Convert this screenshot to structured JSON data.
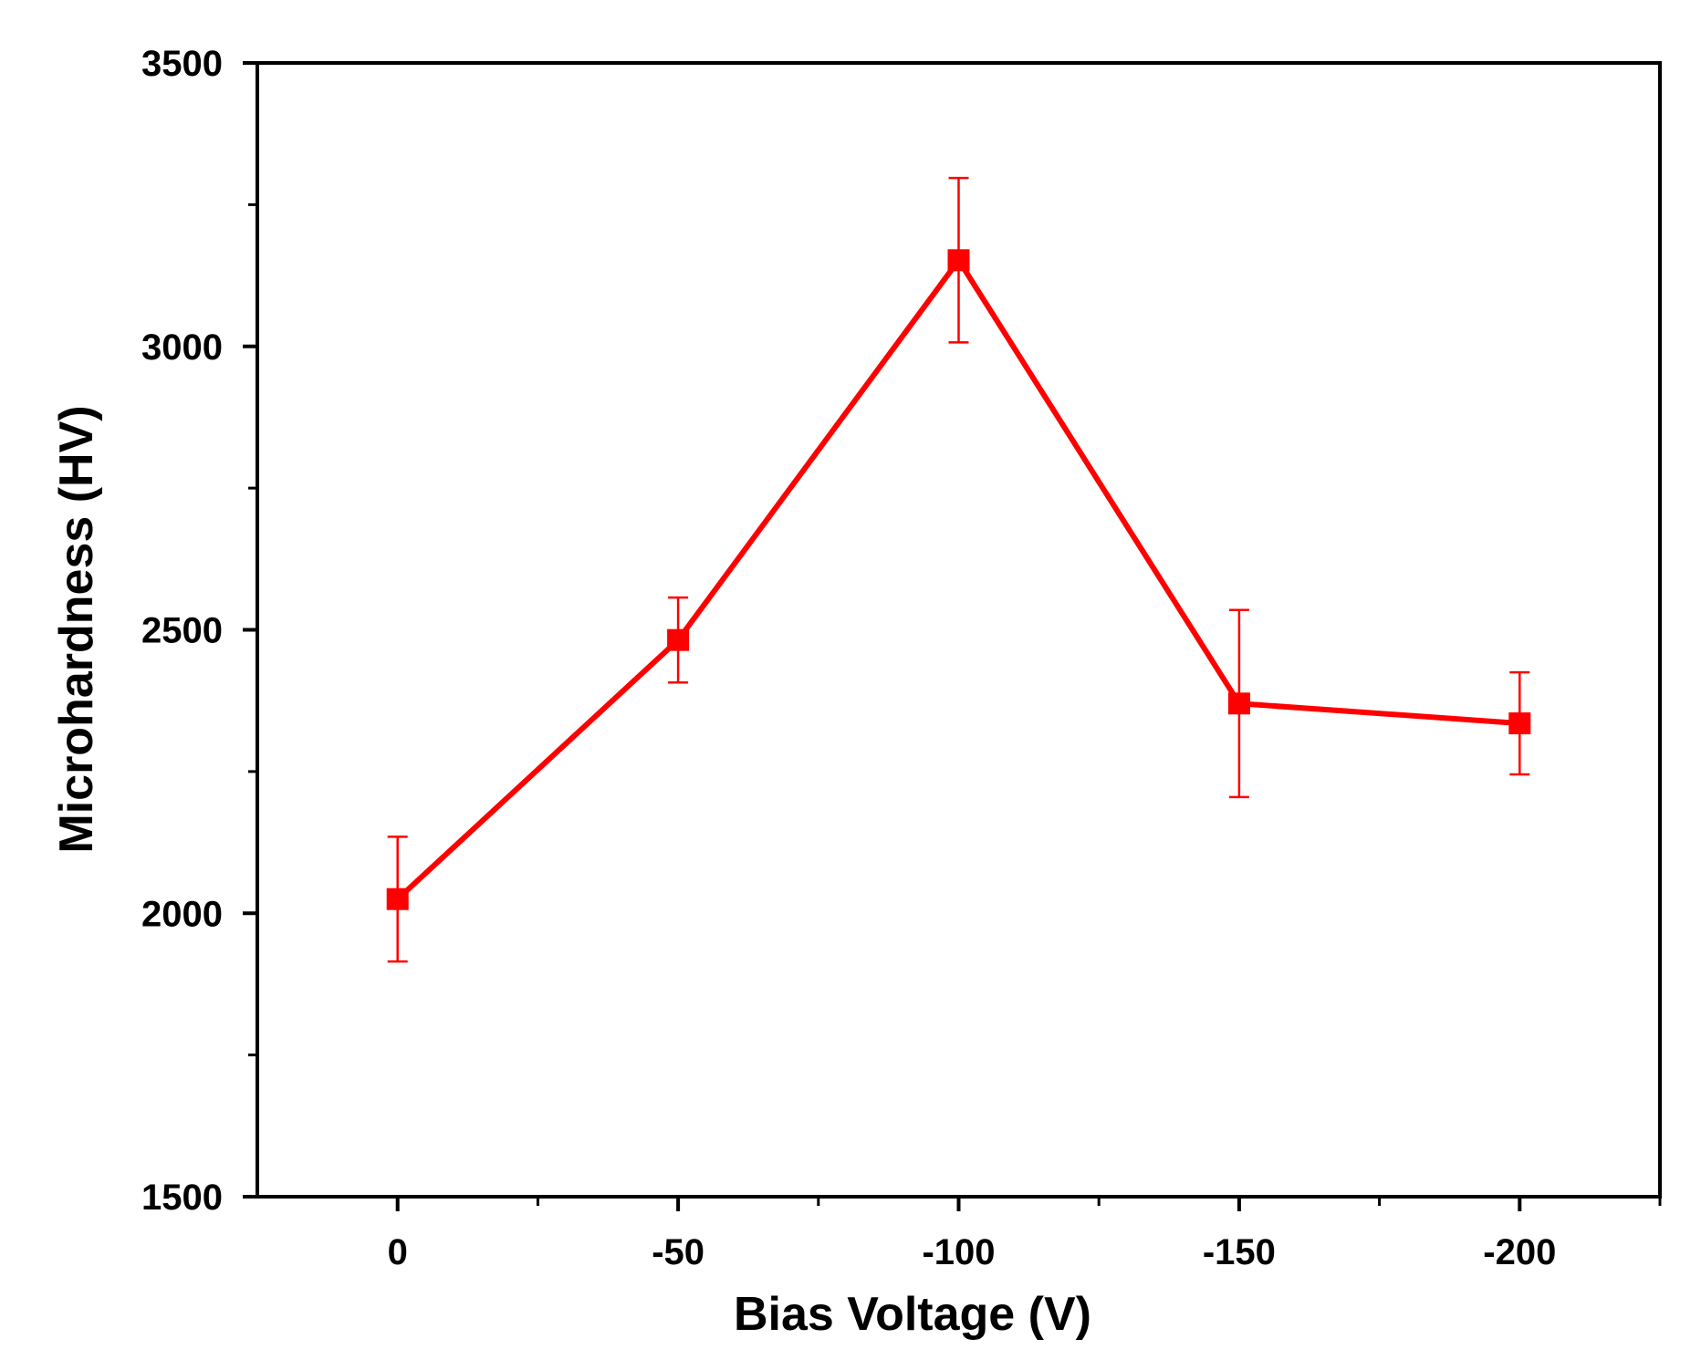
{
  "chart_data": {
    "type": "line",
    "title": "",
    "xlabel": "Bias Voltage (V)",
    "ylabel": "Microhardness (HV)",
    "x": [
      0,
      -50,
      -100,
      -150,
      -200
    ],
    "series": [
      {
        "values": [
          2025,
          2482,
          3152,
          2370,
          2335
        ],
        "error": [
          110,
          75,
          145,
          165,
          90
        ],
        "color": "#ff0000",
        "marker": "square"
      }
    ],
    "xlim": [
      25,
      -225
    ],
    "ylim": [
      1500,
      3500
    ],
    "x_major_ticks": [
      0,
      -50,
      -100,
      -150,
      -200
    ],
    "x_tick_labels": [
      "0",
      "-50",
      "-100",
      "-150",
      "-200"
    ],
    "x_minor_ticks": [
      -25,
      -75,
      -125,
      -175,
      -225
    ],
    "y_major_ticks": [
      1500,
      2000,
      2500,
      3000,
      3500
    ],
    "y_tick_labels": [
      "1500",
      "2000",
      "2500",
      "3000",
      "3500"
    ],
    "y_minor_ticks": [
      1750,
      2250,
      2750,
      3250
    ],
    "grid": false,
    "legend": "none",
    "axis_color": "#000000"
  }
}
